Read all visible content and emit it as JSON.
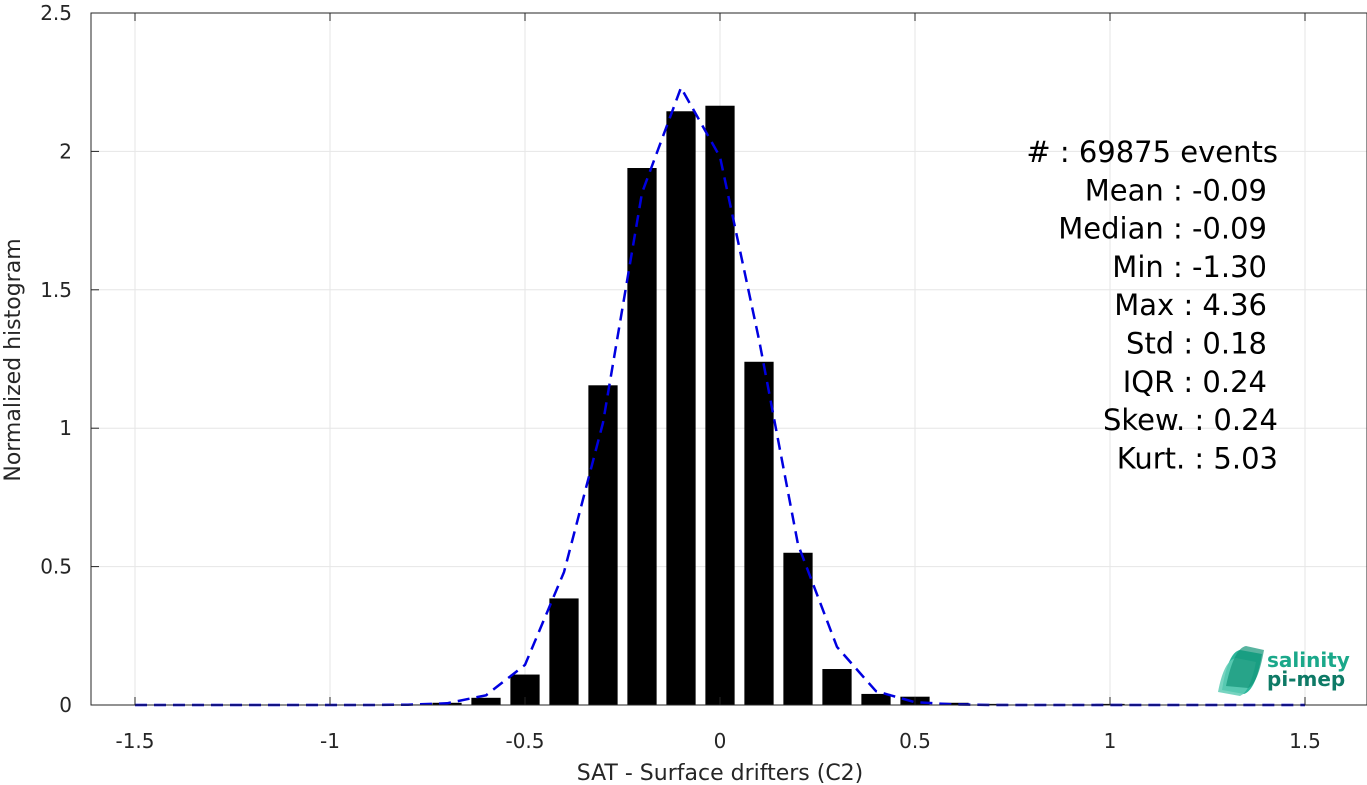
{
  "chart_data": {
    "type": "bar",
    "xlabel": "SAT - Surface drifters (C2)",
    "ylabel": "Normalized histogram",
    "xlim": [
      -1.6,
      1.6
    ],
    "ylim": [
      0,
      2.5
    ],
    "xticks": [
      -1.5,
      -1,
      -0.5,
      0,
      0.5,
      1,
      1.5
    ],
    "xtick_labels": [
      "-1.5",
      "-1",
      "-0.5",
      "0",
      "0.5",
      "1",
      "1.5"
    ],
    "yticks": [
      0,
      0.5,
      1,
      1.5,
      2,
      2.5
    ],
    "ytick_labels": [
      "0",
      "0.5",
      "1",
      "1.5",
      "2",
      "2.5"
    ],
    "grid": true,
    "series": [
      {
        "type": "bar",
        "color": "#000000",
        "x": [
          -1.5,
          -1.4,
          -1.3,
          -1.2,
          -1.1,
          -1.0,
          -0.9,
          -0.8,
          -0.7,
          -0.6,
          -0.5,
          -0.4,
          -0.3,
          -0.2,
          -0.1,
          0.0,
          0.1,
          0.2,
          0.3,
          0.4,
          0.5,
          0.6,
          0.7,
          0.8,
          0.9,
          1.0,
          1.1,
          1.2,
          1.3,
          1.4,
          1.5
        ],
        "values": [
          0,
          0,
          0,
          0,
          0,
          0.001,
          0.001,
          0.002,
          0.008,
          0.026,
          0.11,
          0.385,
          1.155,
          1.94,
          2.145,
          2.165,
          1.24,
          0.55,
          0.13,
          0.04,
          0.03,
          0.008,
          0.004,
          0.002,
          0.002,
          0.004,
          0.001,
          0,
          0,
          0,
          0
        ]
      },
      {
        "type": "line",
        "style": "dashed",
        "color": "#0000e0",
        "x": [
          -1.5,
          -1.4,
          -1.3,
          -1.2,
          -1.1,
          -1.0,
          -0.9,
          -0.8,
          -0.7,
          -0.6,
          -0.5,
          -0.4,
          -0.3,
          -0.2,
          -0.1,
          0.0,
          0.1,
          0.2,
          0.3,
          0.4,
          0.5,
          0.6,
          0.7,
          0.8,
          0.9,
          1.0,
          1.1,
          1.2,
          1.3,
          1.4,
          1.5
        ],
        "values": [
          0,
          0,
          0,
          0,
          0,
          0,
          0,
          0.001,
          0.006,
          0.035,
          0.145,
          0.48,
          1.02,
          1.85,
          2.23,
          1.98,
          1.32,
          0.58,
          0.21,
          0.05,
          0.01,
          0.002,
          0,
          0,
          0,
          0,
          0,
          0,
          0,
          0,
          0
        ]
      }
    ],
    "annotations": [
      "#  : 69875 events",
      "Mean : -0.09",
      "Median : -0.09",
      "Min : -1.30",
      "Max : 4.36",
      "Std : 0.18",
      "IQR : 0.24",
      "Skew. : 0.24",
      "Kurt. : 5.03"
    ]
  },
  "logo": {
    "line1": "salinity",
    "line2": "pi-mep",
    "color1": "#1aa88a",
    "color2": "#0e7a66"
  },
  "colors": {
    "grid": "#e6e6e6",
    "axis": "#262626"
  }
}
